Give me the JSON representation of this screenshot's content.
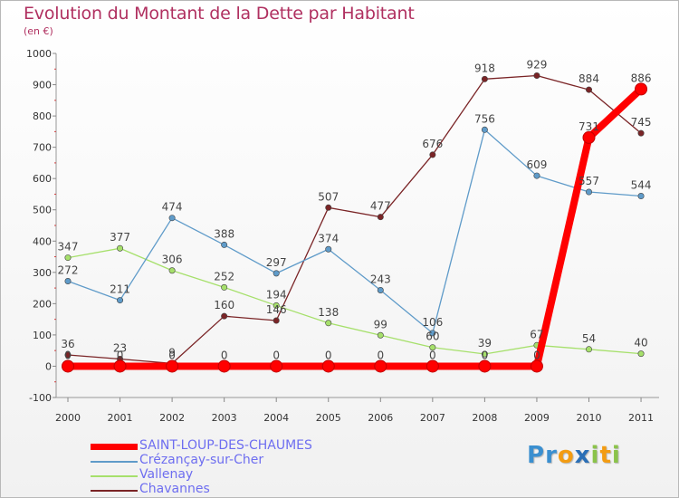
{
  "chart_data": {
    "type": "line",
    "title": "Evolution du Montant de la Dette par Habitant",
    "subtitle": "(en €)",
    "x": [
      "2000",
      "2001",
      "2002",
      "2003",
      "2004",
      "2005",
      "2006",
      "2007",
      "2008",
      "2009",
      "2010",
      "2011"
    ],
    "y_ticks": [
      "-100",
      "0",
      "100",
      "200",
      "300",
      "400",
      "500",
      "600",
      "700",
      "800",
      "900",
      "1000"
    ],
    "ylim": [
      -100,
      1000
    ],
    "grid": false,
    "series": [
      {
        "name": "SAINT-LOUP-DES-CHAUMES",
        "color": "#ff0000",
        "values": [
          0,
          0,
          0,
          0,
          0,
          0,
          0,
          0,
          0,
          0,
          731,
          886
        ]
      },
      {
        "name": "Crézançay-sur-Cher",
        "color": "#5f9bc9",
        "values": [
          272,
          211,
          474,
          388,
          297,
          374,
          243,
          106,
          756,
          609,
          557,
          544
        ]
      },
      {
        "name": "Vallenay",
        "color": "#a6e06b",
        "values": [
          347,
          377,
          306,
          252,
          194,
          138,
          99,
          60,
          39,
          67,
          54,
          40
        ]
      },
      {
        "name": "Chavannes",
        "color": "#7a2426",
        "values": [
          36,
          23,
          9,
          160,
          146,
          507,
          477,
          676,
          918,
          929,
          884,
          745
        ]
      }
    ],
    "data_labels": [
      {
        "series": 0,
        "index": 0,
        "text": "0"
      },
      {
        "series": 0,
        "index": 1,
        "text": "0"
      },
      {
        "series": 0,
        "index": 2,
        "text": "0"
      },
      {
        "series": 0,
        "index": 3,
        "text": "0"
      },
      {
        "series": 0,
        "index": 4,
        "text": "0"
      },
      {
        "series": 0,
        "index": 5,
        "text": "0"
      },
      {
        "series": 0,
        "index": 6,
        "text": "0"
      },
      {
        "series": 0,
        "index": 7,
        "text": "0"
      },
      {
        "series": 0,
        "index": 8,
        "text": "0"
      },
      {
        "series": 0,
        "index": 9,
        "text": "0"
      },
      {
        "series": 0,
        "index": 10,
        "text": "731"
      },
      {
        "series": 0,
        "index": 11,
        "text": "886"
      },
      {
        "series": 1,
        "index": 0,
        "text": "272"
      },
      {
        "series": 1,
        "index": 1,
        "text": "211"
      },
      {
        "series": 1,
        "index": 2,
        "text": "474"
      },
      {
        "series": 1,
        "index": 3,
        "text": "388"
      },
      {
        "series": 1,
        "index": 4,
        "text": "297"
      },
      {
        "series": 1,
        "index": 5,
        "text": "374"
      },
      {
        "series": 1,
        "index": 6,
        "text": "243"
      },
      {
        "series": 1,
        "index": 7,
        "text": "106"
      },
      {
        "series": 1,
        "index": 8,
        "text": "756"
      },
      {
        "series": 1,
        "index": 9,
        "text": "609"
      },
      {
        "series": 1,
        "index": 10,
        "text": "557"
      },
      {
        "series": 1,
        "index": 11,
        "text": "544"
      },
      {
        "series": 2,
        "index": 0,
        "text": "347"
      },
      {
        "series": 2,
        "index": 1,
        "text": "377"
      },
      {
        "series": 2,
        "index": 2,
        "text": "306"
      },
      {
        "series": 2,
        "index": 3,
        "text": "252"
      },
      {
        "series": 2,
        "index": 4,
        "text": "194"
      },
      {
        "series": 2,
        "index": 5,
        "text": "138"
      },
      {
        "series": 2,
        "index": 6,
        "text": "99"
      },
      {
        "series": 2,
        "index": 7,
        "text": "60"
      },
      {
        "series": 2,
        "index": 8,
        "text": "39"
      },
      {
        "series": 2,
        "index": 9,
        "text": "67"
      },
      {
        "series": 2,
        "index": 10,
        "text": "54"
      },
      {
        "series": 2,
        "index": 11,
        "text": "40"
      },
      {
        "series": 3,
        "index": 0,
        "text": "36"
      },
      {
        "series": 3,
        "index": 1,
        "text": "23"
      },
      {
        "series": 3,
        "index": 2,
        "text": "9"
      },
      {
        "series": 3,
        "index": 3,
        "text": "160"
      },
      {
        "series": 3,
        "index": 4,
        "text": "146"
      },
      {
        "series": 3,
        "index": 5,
        "text": "507"
      },
      {
        "series": 3,
        "index": 6,
        "text": "477"
      },
      {
        "series": 3,
        "index": 7,
        "text": "676"
      },
      {
        "series": 3,
        "index": 8,
        "text": "918"
      },
      {
        "series": 3,
        "index": 9,
        "text": "929"
      },
      {
        "series": 3,
        "index": 10,
        "text": "884"
      },
      {
        "series": 3,
        "index": 11,
        "text": "745"
      }
    ]
  },
  "legend": [
    {
      "label": "SAINT-LOUP-DES-CHAUMES",
      "color": "#ff0000",
      "text_color": "#6e6ef0"
    },
    {
      "label": "Crézançay-sur-Cher",
      "color": "#5f9bc9",
      "text_color": "#6e6ef0"
    },
    {
      "label": "Vallenay",
      "color": "#a6e06b",
      "text_color": "#6e6ef0"
    },
    {
      "label": "Chavannes",
      "color": "#7a2426",
      "text_color": "#6e6ef0"
    }
  ],
  "logo": {
    "letters": [
      "P",
      "r",
      "o",
      "x",
      "i",
      "t",
      "i"
    ],
    "colors": [
      "#3a8fd0",
      "#3a8fd0",
      "#f39c12",
      "#2b6fb6",
      "#8bc34a",
      "#f39c12",
      "#8bc34a"
    ]
  }
}
